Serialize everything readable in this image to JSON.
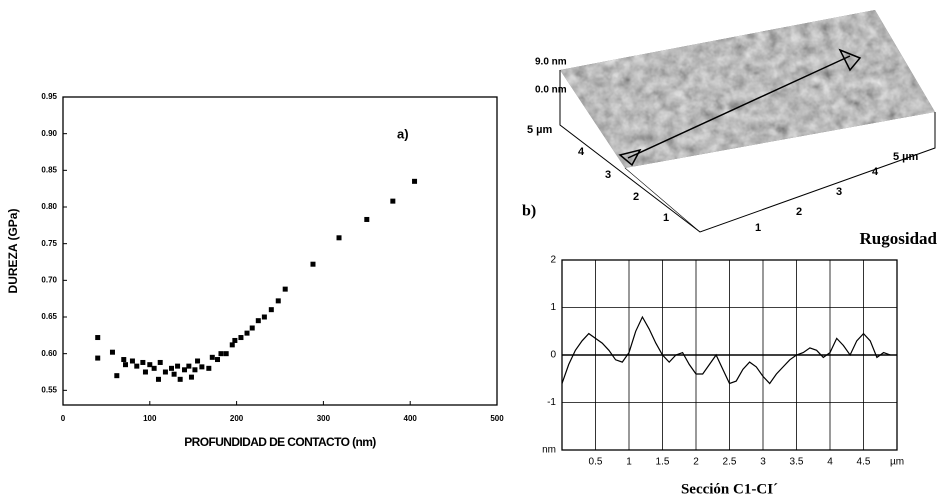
{
  "chart_data": [
    {
      "type": "scatter",
      "annotation": "a)",
      "xlabel": "PROFUNDIDAD DE CONTACTO (nm)",
      "ylabel": "DUREZA (GPa)",
      "xlim": [
        0,
        500
      ],
      "xticks": [
        0,
        100,
        200,
        300,
        400,
        500
      ],
      "ylim": [
        0.53,
        0.95
      ],
      "yticks": [
        0.55,
        {
          "value": 0.6,
          "label": "0.60"
        },
        0.65,
        {
          "value": 0.7,
          "label": "0.70"
        },
        0.75,
        {
          "value": 0.8,
          "label": "0.80"
        },
        0.85,
        {
          "value": 0.9,
          "label": "0.90"
        },
        0.95
      ],
      "color": "#000000",
      "x": [
        40,
        40,
        57,
        62,
        70,
        72,
        80,
        85,
        92,
        95,
        100,
        105,
        110,
        112,
        118,
        125,
        128,
        132,
        135,
        140,
        145,
        148,
        152,
        155,
        160,
        168,
        172,
        178,
        182,
        188,
        195,
        198,
        205,
        212,
        218,
        225,
        232,
        240,
        248,
        256,
        288,
        318,
        350,
        380,
        405
      ],
      "values": [
        0.622,
        0.594,
        0.602,
        0.57,
        0.592,
        0.585,
        0.59,
        0.583,
        0.588,
        0.575,
        0.585,
        0.58,
        0.565,
        0.588,
        0.575,
        0.58,
        0.572,
        0.583,
        0.565,
        0.578,
        0.583,
        0.568,
        0.578,
        0.59,
        0.582,
        0.58,
        0.595,
        0.592,
        0.6,
        0.6,
        0.612,
        0.618,
        0.622,
        0.628,
        0.635,
        0.645,
        0.65,
        0.66,
        0.672,
        0.688,
        0.722,
        0.758,
        0.783,
        0.808,
        0.835
      ]
    },
    {
      "type": "line",
      "title": "Sección C1-CI´",
      "color": "#000000",
      "grid": true,
      "xlim": [
        0,
        5
      ],
      "xticks": [
        0.5,
        1,
        1.5,
        2,
        2.5,
        3,
        3.5,
        4,
        4.5,
        {
          "value": 5,
          "label": "µm"
        }
      ],
      "ylim": [
        -2,
        2
      ],
      "yticks": [
        2,
        1,
        0,
        -1,
        {
          "value": -2,
          "label": "nm"
        }
      ],
      "x": [
        0,
        0.1,
        0.2,
        0.3,
        0.4,
        0.5,
        0.6,
        0.7,
        0.8,
        0.9,
        1,
        1.1,
        1.2,
        1.3,
        1.4,
        1.5,
        1.6,
        1.7,
        1.8,
        1.9,
        2,
        2.1,
        2.2,
        2.3,
        2.4,
        2.5,
        2.6,
        2.7,
        2.8,
        2.9,
        3,
        3.1,
        3.2,
        3.3,
        3.4,
        3.5,
        3.6,
        3.7,
        3.8,
        3.9,
        4,
        4.1,
        4.2,
        4.3,
        4.4,
        4.5,
        4.6,
        4.7,
        4.8,
        4.9
      ],
      "values": [
        -0.6,
        -0.2,
        0.1,
        0.3,
        0.45,
        0.35,
        0.25,
        0.1,
        -0.1,
        -0.15,
        0.05,
        0.5,
        0.8,
        0.55,
        0.25,
        0,
        -0.15,
        0,
        0.05,
        -0.2,
        -0.4,
        -0.4,
        -0.2,
        0,
        -0.3,
        -0.6,
        -0.55,
        -0.3,
        -0.15,
        -0.25,
        -0.45,
        -0.6,
        -0.4,
        -0.25,
        -0.1,
        0,
        0.05,
        0.15,
        0.1,
        -0.05,
        0.05,
        0.35,
        0.2,
        0,
        0.3,
        0.45,
        0.3,
        -0.05,
        0.05,
        0
      ]
    }
  ],
  "afm_image": {
    "label": "b)",
    "title": "Rugosidad",
    "z_labels": [
      "9.0 nm",
      "0.0 nm"
    ],
    "y_labels": [
      "5 µm",
      "4",
      "3",
      "2",
      "1"
    ],
    "x_labels": [
      "1",
      "2",
      "3",
      "4",
      "5 µm"
    ]
  }
}
